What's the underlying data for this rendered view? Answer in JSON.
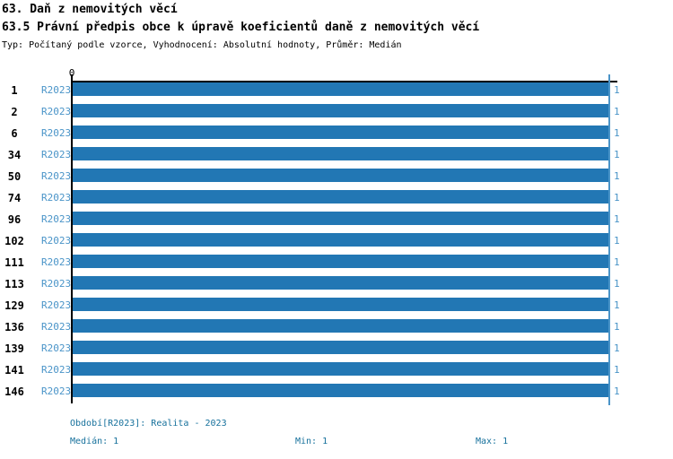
{
  "header": {
    "title1": "63. Daň z nemovitých věcí",
    "title2": "63.5 Právní předpis obce k úpravě koeficientů daně z nemovitých věcí",
    "subtitle": "Typ: Počítaný podle vzorce, Vyhodnocení: Absolutní hodnoty, Průměr: Medián"
  },
  "chart_data": {
    "type": "bar",
    "orientation": "horizontal",
    "title": "63.5 Právní předpis obce k úpravě koeficientů daně z nemovitých věcí",
    "categories": [
      "1",
      "2",
      "6",
      "34",
      "50",
      "74",
      "96",
      "102",
      "111",
      "113",
      "129",
      "136",
      "139",
      "141",
      "146"
    ],
    "series": [
      {
        "name": "R2023",
        "values": [
          1,
          1,
          1,
          1,
          1,
          1,
          1,
          1,
          1,
          1,
          1,
          1,
          1,
          1,
          1
        ]
      }
    ],
    "value_labels": [
      "1",
      "1",
      "1",
      "1",
      "1",
      "1",
      "1",
      "1",
      "1",
      "1",
      "1",
      "1",
      "1",
      "1",
      "1"
    ],
    "xlim": [
      0,
      1
    ],
    "x_tick_labels": [
      "0"
    ],
    "x_axis_zero_label": "0",
    "median_marker_value": 1,
    "grid": false,
    "legend_position": "none"
  },
  "footer": {
    "period_label": "Období[R2023]: Realita - 2023",
    "median_label": "Medián: 1",
    "min_label": "Min: 1",
    "max_label": "Max: 1"
  },
  "colors": {
    "bar": "#2277b4",
    "series_text": "#4a94c8",
    "value_text": "#4a94c8",
    "median_line": "#4a94c8",
    "axis": "#000000",
    "footer_text": "#17719c",
    "title_text": "#000000"
  }
}
